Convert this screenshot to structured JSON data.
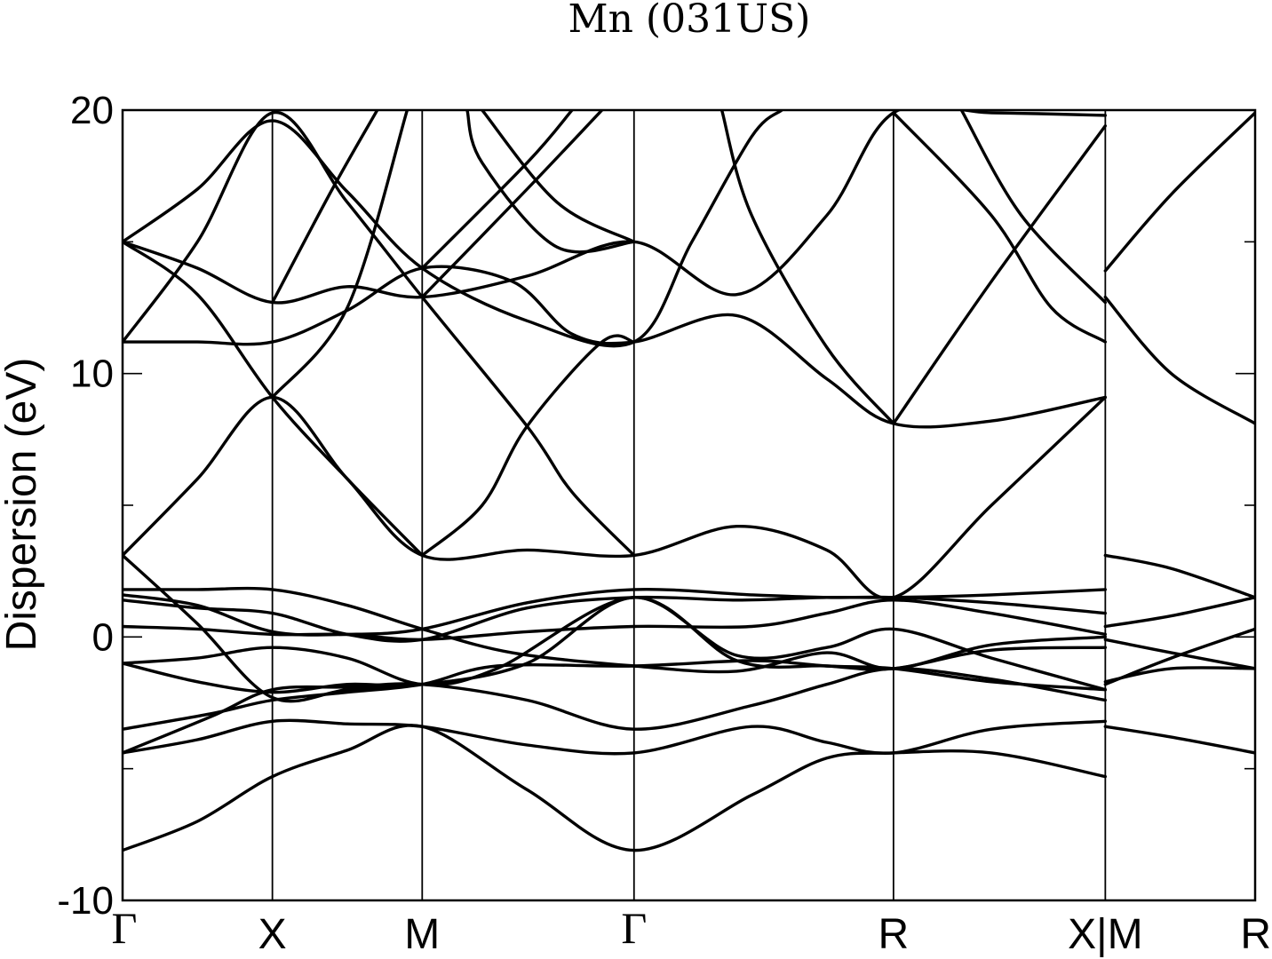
{
  "chart_data": {
    "type": "line",
    "title": "Mn (031US)",
    "ylabel": "Dispersion (eV)",
    "xlabel": "",
    "ylim": [
      -10,
      20
    ],
    "y_ticks": [
      -10,
      0,
      10,
      20
    ],
    "y_tick_labels": [
      "-10",
      "0",
      "10",
      "20"
    ],
    "grid": false,
    "legend": "none",
    "line_color": "#000000",
    "k_points": [
      {
        "label": "Γ",
        "x": 0.0
      },
      {
        "label": "X",
        "x": 0.5
      },
      {
        "label": "M",
        "x": 1.0
      },
      {
        "label": "Γ",
        "x": 1.707
      },
      {
        "label": "R",
        "x": 2.573
      },
      {
        "label": "X|M",
        "x": 3.28
      },
      {
        "label": "R",
        "x": 3.78
      }
    ],
    "series": [
      {
        "points": [
          [
            0,
            -8.1
          ],
          [
            0.25,
            -7.0
          ],
          [
            0.5,
            -5.3
          ],
          [
            0.75,
            -4.3
          ],
          [
            1.0,
            -3.4
          ],
          [
            1.35,
            -5.8
          ],
          [
            1.707,
            -8.1
          ],
          [
            2.1,
            -6.0
          ],
          [
            2.35,
            -4.6
          ],
          [
            2.573,
            -4.4
          ],
          [
            2.9,
            -4.4
          ],
          [
            3.28,
            -5.3
          ]
        ]
      },
      {
        "points": [
          [
            0,
            -4.4
          ],
          [
            0.25,
            -3.9
          ],
          [
            0.5,
            -3.2
          ],
          [
            0.75,
            -3.3
          ],
          [
            1.0,
            -3.4
          ],
          [
            1.35,
            -4.1
          ],
          [
            1.707,
            -4.4
          ],
          [
            2.1,
            -3.4
          ],
          [
            2.35,
            -4.0
          ],
          [
            2.573,
            -4.4
          ],
          [
            2.9,
            -3.5
          ],
          [
            3.28,
            -3.2
          ]
        ]
      },
      {
        "points": [
          [
            0,
            -4.4
          ],
          [
            0.3,
            -3.0
          ],
          [
            0.5,
            -2.0
          ],
          [
            0.75,
            -1.9
          ],
          [
            1.0,
            -1.8
          ],
          [
            1.35,
            -2.4
          ],
          [
            1.707,
            -3.5
          ],
          [
            2.1,
            -2.6
          ],
          [
            2.35,
            -1.8
          ],
          [
            2.573,
            -1.2
          ],
          [
            2.9,
            -1.6
          ],
          [
            3.28,
            -2.4
          ]
        ]
      },
      {
        "points": [
          [
            0,
            -3.5
          ],
          [
            0.3,
            -2.9
          ],
          [
            0.5,
            -2.4
          ],
          [
            0.75,
            -2.1
          ],
          [
            1.0,
            -1.8
          ],
          [
            1.25,
            -1.1
          ],
          [
            1.707,
            -1.1
          ],
          [
            2.1,
            -0.9
          ],
          [
            2.35,
            -1.1
          ],
          [
            2.573,
            -1.2
          ],
          [
            2.9,
            -1.7
          ],
          [
            3.28,
            -2.0
          ]
        ]
      },
      {
        "points": [
          [
            0,
            -1.0
          ],
          [
            0.25,
            -1.7
          ],
          [
            0.5,
            -2.1
          ],
          [
            0.75,
            -1.8
          ],
          [
            1.0,
            -1.8
          ],
          [
            1.35,
            -1.0
          ],
          [
            1.707,
            1.5
          ],
          [
            2.05,
            -0.7
          ],
          [
            2.35,
            -0.4
          ],
          [
            2.573,
            0.3
          ],
          [
            2.9,
            -0.8
          ],
          [
            3.28,
            -2.0
          ]
        ]
      },
      {
        "points": [
          [
            0,
            -1.0
          ],
          [
            0.25,
            -0.8
          ],
          [
            0.5,
            -0.4
          ],
          [
            0.75,
            -0.8
          ],
          [
            1.0,
            -1.8
          ],
          [
            1.25,
            -1.2
          ],
          [
            1.707,
            1.5
          ],
          [
            2.05,
            -0.9
          ],
          [
            2.35,
            -1.1
          ],
          [
            2.573,
            -1.2
          ],
          [
            2.9,
            -0.5
          ],
          [
            3.28,
            -0.4
          ]
        ]
      },
      {
        "points": [
          [
            0,
            0.4
          ],
          [
            0.25,
            0.3
          ],
          [
            0.5,
            0.1
          ],
          [
            0.75,
            0.1
          ],
          [
            1.0,
            -0.1
          ],
          [
            1.35,
            0.2
          ],
          [
            1.707,
            0.4
          ],
          [
            2.1,
            0.4
          ],
          [
            2.35,
            0.9
          ],
          [
            2.573,
            1.4
          ],
          [
            2.9,
            0.9
          ],
          [
            3.28,
            0.1
          ]
        ]
      },
      {
        "points": [
          [
            0,
            1.6
          ],
          [
            0.25,
            1.2
          ],
          [
            0.5,
            0.2
          ],
          [
            0.75,
            0.1
          ],
          [
            1.0,
            0.3
          ],
          [
            1.35,
            1.3
          ],
          [
            1.707,
            1.8
          ],
          [
            2.1,
            1.6
          ],
          [
            2.35,
            1.5
          ],
          [
            2.573,
            1.5
          ],
          [
            2.9,
            1.3
          ],
          [
            3.28,
            0.9
          ]
        ]
      },
      {
        "points": [
          [
            0,
            1.8
          ],
          [
            0.25,
            1.8
          ],
          [
            0.5,
            1.8
          ],
          [
            0.75,
            1.2
          ],
          [
            1.0,
            0.3
          ],
          [
            1.3,
            -0.6
          ],
          [
            1.707,
            -1.1
          ],
          [
            2.05,
            -1.3
          ],
          [
            2.35,
            -0.6
          ],
          [
            2.573,
            -1.2
          ],
          [
            2.9,
            -0.3
          ],
          [
            3.28,
            0.0
          ]
        ]
      },
      {
        "points": [
          [
            0,
            1.4
          ],
          [
            0.25,
            1.1
          ],
          [
            0.5,
            0.9
          ],
          [
            0.75,
            0.1
          ],
          [
            1.0,
            -0.1
          ],
          [
            1.35,
            1.1
          ],
          [
            1.707,
            1.5
          ],
          [
            2.05,
            1.4
          ],
          [
            2.35,
            1.5
          ],
          [
            2.573,
            1.5
          ],
          [
            2.9,
            1.6
          ],
          [
            3.28,
            1.8
          ]
        ]
      },
      {
        "points": [
          [
            0,
            3.1
          ],
          [
            0.25,
            6.0
          ],
          [
            0.5,
            9.1
          ],
          [
            0.75,
            6.0
          ],
          [
            1.0,
            3.1
          ],
          [
            1.35,
            3.3
          ],
          [
            1.707,
            3.1
          ],
          [
            2.05,
            4.2
          ],
          [
            2.35,
            3.3
          ],
          [
            2.573,
            1.5
          ],
          [
            2.9,
            5.0
          ],
          [
            3.28,
            9.1
          ]
        ]
      },
      {
        "points": [
          [
            0,
            11.2
          ],
          [
            0.25,
            11.2
          ],
          [
            0.5,
            11.2
          ],
          [
            0.75,
            12.4
          ],
          [
            1.0,
            14.0
          ],
          [
            1.3,
            13.5
          ],
          [
            1.5,
            11.5
          ],
          [
            1.707,
            11.2
          ],
          [
            2.05,
            12.2
          ],
          [
            2.35,
            9.8
          ],
          [
            2.573,
            8.1
          ],
          [
            2.9,
            8.2
          ],
          [
            3.28,
            9.1
          ]
        ]
      },
      {
        "points": [
          [
            0,
            15.0
          ],
          [
            0.25,
            14.0
          ],
          [
            0.5,
            12.7
          ],
          [
            0.75,
            13.3
          ],
          [
            1.0,
            12.9
          ],
          [
            1.35,
            13.7
          ],
          [
            1.707,
            15.0
          ],
          [
            2.05,
            13.0
          ],
          [
            2.35,
            16.0
          ],
          [
            2.573,
            19.9
          ],
          [
            2.9,
            19.9
          ],
          [
            3.28,
            19.8
          ]
        ]
      },
      {
        "points": [
          [
            0,
            15.0
          ],
          [
            0.25,
            17.0
          ],
          [
            0.5,
            19.6
          ],
          [
            0.75,
            16.9
          ],
          [
            1.0,
            14.0
          ],
          [
            1.35,
            12.0
          ],
          [
            1.707,
            11.2
          ],
          [
            1.9,
            15.0
          ],
          [
            2.1,
            19.0
          ],
          [
            2.2,
            20.0
          ]
        ]
      },
      {
        "points": [
          [
            0,
            11.2
          ],
          [
            0.25,
            15.0
          ],
          [
            0.5,
            19.9
          ],
          [
            0.75,
            16.5
          ],
          [
            1.0,
            12.9
          ],
          [
            1.35,
            8.0
          ],
          [
            1.5,
            5.5
          ],
          [
            1.707,
            3.1
          ]
        ]
      },
      {
        "points": [
          [
            0,
            3.1
          ],
          [
            0.25,
            0.5
          ],
          [
            0.5,
            -2.3
          ],
          [
            0.75,
            -2.0
          ],
          [
            1.0,
            -1.8
          ]
        ]
      },
      {
        "points": [
          [
            0,
            15.0
          ],
          [
            0.25,
            13.0
          ],
          [
            0.5,
            9.1
          ],
          [
            0.75,
            6.0
          ],
          [
            1.0,
            3.1
          ]
        ]
      },
      {
        "points": [
          [
            0.5,
            9.1
          ],
          [
            0.75,
            12.5
          ],
          [
            0.95,
            20.0
          ]
        ]
      },
      {
        "points": [
          [
            0.5,
            12.7
          ],
          [
            0.7,
            17.0
          ],
          [
            0.85,
            20.0
          ]
        ]
      },
      {
        "points": [
          [
            1.0,
            12.9
          ],
          [
            1.35,
            17.0
          ],
          [
            1.6,
            20.0
          ]
        ]
      },
      {
        "points": [
          [
            1.0,
            14.0
          ],
          [
            1.35,
            18.0
          ],
          [
            1.5,
            20.0
          ]
        ]
      },
      {
        "points": [
          [
            1.707,
            11.2
          ],
          [
            1.6,
            11.2
          ],
          [
            1.35,
            8.0
          ],
          [
            1.2,
            5.0
          ],
          [
            1.0,
            3.1
          ]
        ]
      },
      {
        "points": [
          [
            1.707,
            15.0
          ],
          [
            1.45,
            14.8
          ],
          [
            1.2,
            18.0
          ],
          [
            1.15,
            20.0
          ]
        ]
      },
      {
        "points": [
          [
            1.707,
            15.0
          ],
          [
            1.45,
            16.5
          ],
          [
            1.2,
            20.0
          ]
        ]
      },
      {
        "points": [
          [
            2.573,
            8.1
          ],
          [
            2.35,
            11.0
          ],
          [
            2.1,
            16.0
          ],
          [
            2.0,
            20.0
          ]
        ]
      },
      {
        "points": [
          [
            2.573,
            8.1
          ],
          [
            2.9,
            13.5
          ],
          [
            3.28,
            19.4
          ]
        ]
      },
      {
        "points": [
          [
            2.573,
            19.9
          ],
          [
            2.9,
            16.0
          ],
          [
            3.1,
            12.5
          ],
          [
            3.28,
            11.2
          ]
        ]
      },
      {
        "points": [
          [
            2.8,
            20.0
          ],
          [
            3.0,
            16.0
          ],
          [
            3.28,
            12.7
          ]
        ]
      },
      {
        "points": [
          [
            3.28,
            13.9
          ],
          [
            3.5,
            16.8
          ],
          [
            3.78,
            19.9
          ]
        ]
      },
      {
        "points": [
          [
            3.28,
            12.9
          ],
          [
            3.5,
            10.0
          ],
          [
            3.78,
            8.1
          ]
        ]
      },
      {
        "points": [
          [
            3.28,
            3.1
          ],
          [
            3.5,
            2.6
          ],
          [
            3.78,
            1.5
          ]
        ]
      },
      {
        "points": [
          [
            3.28,
            0.4
          ],
          [
            3.5,
            0.8
          ],
          [
            3.78,
            1.5
          ]
        ]
      },
      {
        "points": [
          [
            3.28,
            -0.1
          ],
          [
            3.5,
            -0.6
          ],
          [
            3.78,
            -1.2
          ]
        ]
      },
      {
        "points": [
          [
            3.28,
            -1.7
          ],
          [
            3.5,
            -1.2
          ],
          [
            3.78,
            -1.2
          ]
        ]
      },
      {
        "points": [
          [
            3.28,
            -1.8
          ],
          [
            3.5,
            -0.8
          ],
          [
            3.78,
            0.3
          ]
        ]
      },
      {
        "points": [
          [
            3.28,
            -3.4
          ],
          [
            3.5,
            -3.8
          ],
          [
            3.78,
            -4.4
          ]
        ]
      }
    ]
  }
}
